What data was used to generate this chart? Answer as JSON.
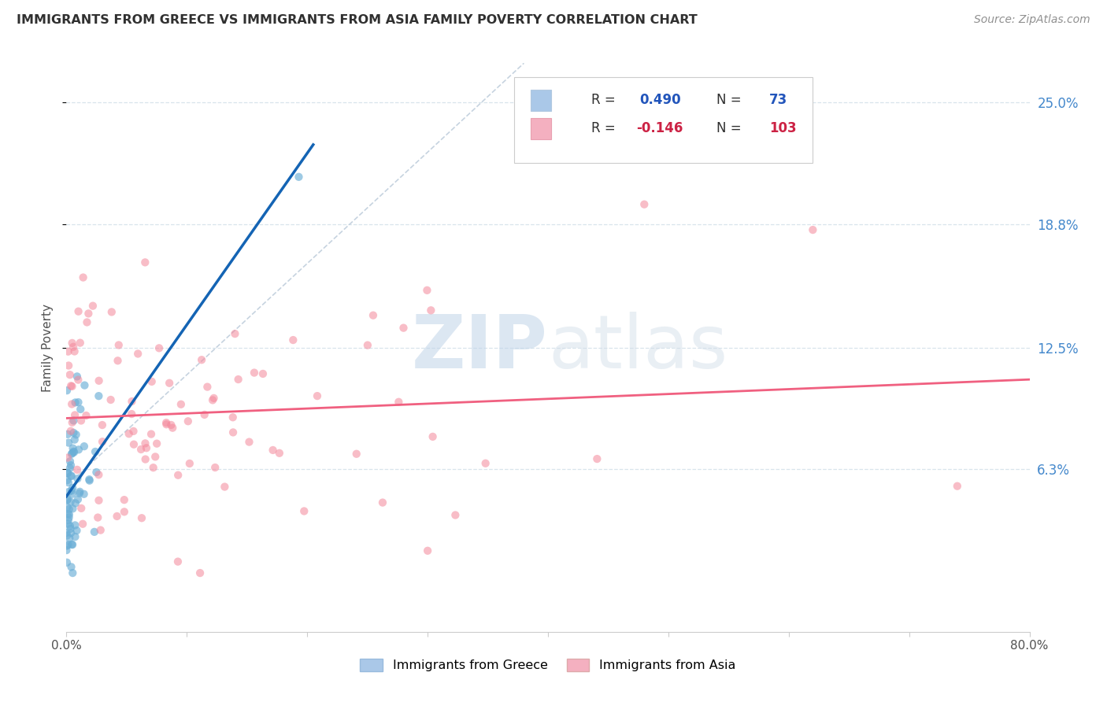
{
  "title": "IMMIGRANTS FROM GREECE VS IMMIGRANTS FROM ASIA FAMILY POVERTY CORRELATION CHART",
  "source": "Source: ZipAtlas.com",
  "ylabel": "Family Poverty",
  "ytick_labels": [
    "25.0%",
    "18.8%",
    "12.5%",
    "6.3%"
  ],
  "ytick_values": [
    0.25,
    0.188,
    0.125,
    0.063
  ],
  "xlim": [
    0.0,
    0.8
  ],
  "ylim": [
    -0.02,
    0.27
  ],
  "greece_R": 0.49,
  "greece_N": 73,
  "asia_R": -0.146,
  "asia_N": 103,
  "greece_scatter_color": "#6aaed6",
  "asia_scatter_color": "#f4879a",
  "greece_line_color": "#1464b4",
  "asia_line_color": "#f06080",
  "dashed_line_color": "#b8c8d8",
  "watermark_color": "#ccdbe8",
  "grid_color": "#d8e4ec",
  "title_color": "#303030",
  "right_axis_color": "#4488cc",
  "legend_greece_color": "#aac8e8",
  "legend_asia_color": "#f4b0c0"
}
